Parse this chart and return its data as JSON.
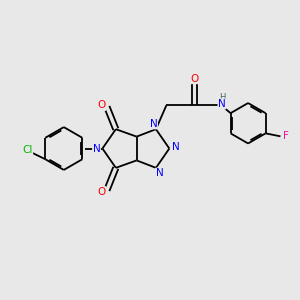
{
  "background_color": "#e8e8e8",
  "bond_color": "#000000",
  "atom_colors": {
    "N": "#0000ff",
    "O": "#ff0000",
    "Cl": "#00bb00",
    "F": "#ee1199",
    "H": "#336666",
    "C": "#000000"
  },
  "figsize": [
    3.0,
    3.0
  ],
  "dpi": 100,
  "lw": 1.3,
  "fontsize": 7.5
}
